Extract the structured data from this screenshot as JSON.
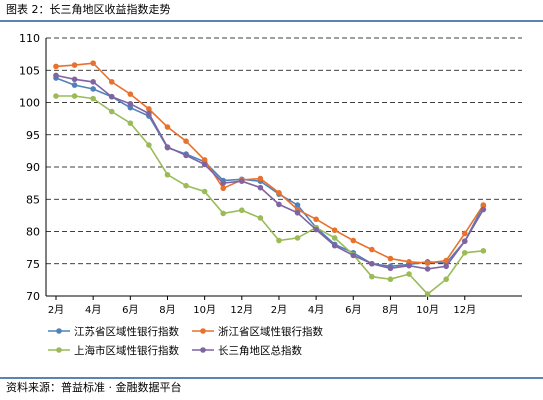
{
  "header": {
    "title": "图表 2：长三角地区收益指数走势"
  },
  "footer": {
    "source": "资料来源：普益标准 · 金融数据平台"
  },
  "chart_data": {
    "type": "line",
    "ylim": [
      70,
      110
    ],
    "yticks": [
      70,
      75,
      80,
      85,
      90,
      95,
      100,
      105,
      110
    ],
    "xtick_labels": [
      "2月",
      "4月",
      "6月",
      "8月",
      "10月",
      "12月",
      "2月",
      "4月",
      "6月",
      "8月",
      "10月",
      "12月"
    ],
    "grid": true,
    "legend_position": "bottom",
    "series": [
      {
        "name": "江苏省区域性银行指数",
        "color": "#4f81bd",
        "values": [
          103.8,
          102.7,
          102.1,
          100.9,
          99.2,
          97.9,
          93.0,
          92.0,
          90.8,
          87.9,
          88.1,
          87.8,
          85.8,
          84.1,
          80.6,
          78.0,
          76.7,
          75.0,
          74.6,
          74.9,
          75.3,
          75.1,
          78.5,
          84.0
        ]
      },
      {
        "name": "浙江省区域性银行指数",
        "color": "#e8712c",
        "values": [
          105.6,
          105.8,
          106.1,
          103.2,
          101.3,
          99.0,
          96.2,
          94.0,
          91.1,
          86.7,
          88.0,
          88.2,
          86.0,
          83.4,
          81.9,
          80.2,
          78.6,
          77.2,
          75.8,
          75.3,
          75.1,
          75.5,
          79.7,
          84.1
        ]
      },
      {
        "name": "上海市区域性银行指数",
        "color": "#9bbb59",
        "values": [
          101.0,
          101.0,
          100.6,
          98.6,
          96.8,
          93.4,
          88.8,
          87.1,
          86.2,
          82.8,
          83.3,
          82.1,
          78.6,
          79.0,
          80.6,
          79.0,
          76.4,
          73.0,
          72.6,
          73.4,
          70.3,
          72.6,
          76.7,
          77.0
        ]
      },
      {
        "name": "长三角地区总指数",
        "color": "#8064a2",
        "values": [
          104.2,
          103.6,
          103.2,
          100.9,
          99.8,
          98.3,
          93.1,
          91.8,
          90.4,
          87.5,
          87.8,
          86.8,
          84.2,
          82.9,
          80.3,
          77.8,
          76.3,
          75.0,
          74.3,
          74.7,
          74.2,
          74.6,
          78.5,
          83.4
        ]
      }
    ]
  }
}
